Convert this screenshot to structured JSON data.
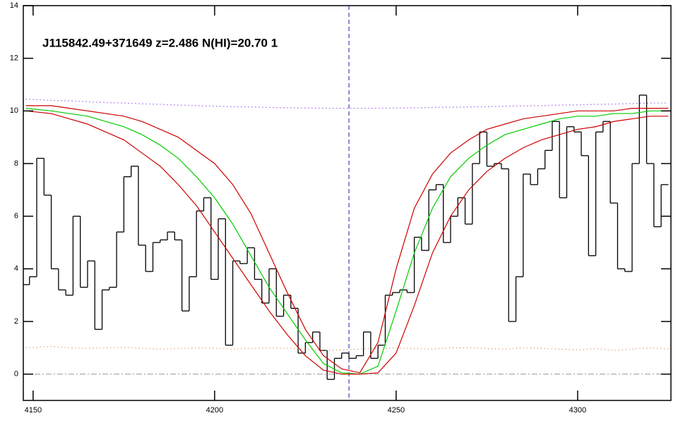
{
  "chart_data": {
    "type": "line",
    "title": "J115842.49+371649 z=2.486 N(HI)=20.70 1",
    "xlim": [
      4147.3,
      4325.7
    ],
    "ylim": [
      -1.0,
      14
    ],
    "xticks": [
      4150,
      4200,
      4250,
      4300
    ],
    "yticks": [
      0,
      2,
      4,
      6,
      8,
      10,
      12,
      14
    ],
    "hline": {
      "value": 0,
      "color": "#999999"
    },
    "vline": {
      "value": 4237,
      "color": "#1a1aaa"
    },
    "series": [
      {
        "color": "#000000",
        "style": "steps",
        "x": [
          4148,
          4150,
          4152,
          4154,
          4156,
          4158,
          4160,
          4162,
          4164,
          4166,
          4168,
          4170,
          4172,
          4174,
          4176,
          4178,
          4180,
          4182,
          4184,
          4186,
          4188,
          4190,
          4192,
          4194,
          4196,
          4198,
          4200,
          4202,
          4204,
          4206,
          4208,
          4210,
          4212,
          4214,
          4216,
          4218,
          4220,
          4222,
          4224,
          4226,
          4228,
          4230,
          4232,
          4234,
          4236,
          4238,
          4240,
          4242,
          4244,
          4246,
          4248,
          4250,
          4252,
          4254,
          4256,
          4258,
          4260,
          4262,
          4264,
          4266,
          4268,
          4270,
          4272,
          4274,
          4276,
          4278,
          4280,
          4282,
          4284,
          4286,
          4288,
          4290,
          4292,
          4294,
          4296,
          4298,
          4300,
          4302,
          4304,
          4306,
          4308,
          4310,
          4312,
          4314,
          4316,
          4318,
          4320,
          4322,
          4324
        ],
        "values": [
          3.4,
          3.7,
          8.2,
          6.8,
          4.0,
          3.2,
          3.0,
          6.0,
          3.3,
          4.3,
          1.7,
          3.2,
          3.3,
          5.4,
          7.5,
          7.9,
          4.9,
          3.9,
          5.0,
          5.1,
          5.4,
          5.1,
          2.4,
          3.7,
          6.2,
          6.7,
          3.6,
          5.9,
          1.1,
          4.3,
          4.2,
          4.8,
          3.6,
          2.7,
          4.0,
          2.2,
          3.0,
          2.5,
          0.8,
          1.2,
          1.6,
          0.9,
          -0.2,
          0.6,
          0.8,
          0.6,
          0.7,
          1.6,
          0.6,
          1.1,
          3.0,
          3.1,
          3.2,
          3.1,
          5.2,
          4.7,
          7.0,
          7.2,
          5.0,
          6.0,
          6.7,
          5.7,
          8.0,
          9.2,
          7.9,
          8.0,
          7.8,
          2.0,
          3.7,
          7.6,
          7.2,
          7.8,
          8.5,
          9.6,
          6.7,
          9.4,
          9.2,
          8.3,
          4.5,
          9.2,
          9.6,
          6.5,
          4.0,
          3.9,
          8.0,
          10.6,
          8.0,
          5.6,
          7.2
        ]
      },
      {
        "color": "#00cc00",
        "style": "solid",
        "x": [
          4148,
          4155,
          4160,
          4165,
          4170,
          4175,
          4180,
          4185,
          4190,
          4195,
          4200,
          4205,
          4210,
          4215,
          4220,
          4225,
          4230,
          4235,
          4240,
          4245,
          4250,
          4255,
          4260,
          4265,
          4270,
          4275,
          4280,
          4285,
          4290,
          4295,
          4300,
          4305,
          4310,
          4315,
          4320,
          4325
        ],
        "values": [
          10.1,
          10.0,
          9.9,
          9.8,
          9.6,
          9.4,
          9.1,
          8.7,
          8.2,
          7.5,
          6.7,
          5.7,
          4.5,
          3.3,
          2.3,
          1.3,
          0.4,
          0.05,
          0,
          0.3,
          2.4,
          4.6,
          6.3,
          7.5,
          8.2,
          8.7,
          9.1,
          9.3,
          9.5,
          9.7,
          9.8,
          9.8,
          9.9,
          9.9,
          10.0,
          10.0
        ]
      },
      {
        "color": "#cc0000",
        "style": "solid",
        "x": [
          4148,
          4155,
          4160,
          4165,
          4170,
          4175,
          4180,
          4185,
          4190,
          4195,
          4200,
          4205,
          4210,
          4215,
          4220,
          4225,
          4230,
          4235,
          4240,
          4245,
          4250,
          4255,
          4260,
          4265,
          4270,
          4275,
          4280,
          4285,
          4290,
          4295,
          4300,
          4305,
          4310,
          4315,
          4320,
          4325
        ],
        "values": [
          10.0,
          9.9,
          9.7,
          9.5,
          9.2,
          8.9,
          8.4,
          7.9,
          7.2,
          6.4,
          5.4,
          4.4,
          3.4,
          2.4,
          1.5,
          0.7,
          0.15,
          0,
          0,
          0.05,
          0.8,
          2.6,
          4.6,
          6.0,
          7.0,
          7.7,
          8.2,
          8.6,
          8.9,
          9.1,
          9.3,
          9.4,
          9.6,
          9.7,
          9.8,
          9.8
        ]
      },
      {
        "color": "#cc0000",
        "style": "solid",
        "x": [
          4148,
          4155,
          4160,
          4165,
          4170,
          4175,
          4180,
          4185,
          4190,
          4195,
          4200,
          4205,
          4210,
          4215,
          4220,
          4225,
          4230,
          4235,
          4240,
          4245,
          4250,
          4255,
          4260,
          4265,
          4270,
          4275,
          4280,
          4285,
          4290,
          4295,
          4300,
          4305,
          4310,
          4315,
          4320,
          4325
        ],
        "values": [
          10.2,
          10.2,
          10.1,
          10.0,
          9.9,
          9.8,
          9.6,
          9.3,
          9.0,
          8.5,
          8.0,
          7.2,
          6.1,
          4.6,
          3.1,
          1.7,
          0.7,
          0.2,
          0.05,
          1.2,
          4.0,
          6.3,
          7.6,
          8.4,
          8.9,
          9.3,
          9.5,
          9.7,
          9.8,
          9.9,
          10.0,
          10.0,
          10.0,
          10.1,
          10.1,
          10.1
        ]
      },
      {
        "color": "#7a22e0",
        "style": "dotted",
        "x": [
          4148,
          4155,
          4160,
          4165,
          4170,
          4175,
          4180,
          4185,
          4190,
          4195,
          4200,
          4205,
          4210,
          4215,
          4220,
          4225,
          4230,
          4235,
          4240,
          4245,
          4250,
          4255,
          4260,
          4265,
          4270,
          4275,
          4280,
          4285,
          4290,
          4295,
          4300,
          4305,
          4310,
          4315,
          4320,
          4325
        ],
        "values": [
          10.45,
          10.4,
          10.38,
          10.35,
          10.32,
          10.3,
          10.27,
          10.25,
          10.22,
          10.2,
          10.18,
          10.16,
          10.15,
          10.13,
          10.12,
          10.11,
          10.1,
          10.1,
          10.1,
          10.1,
          10.11,
          10.12,
          10.13,
          10.14,
          10.15,
          10.16,
          10.18,
          10.19,
          10.2,
          10.22,
          10.23,
          10.25,
          10.26,
          10.28,
          10.3,
          10.3
        ]
      },
      {
        "color": "#e08040",
        "style": "dotted",
        "x": [
          4148,
          4155,
          4160,
          4165,
          4170,
          4175,
          4180,
          4185,
          4190,
          4195,
          4200,
          4205,
          4210,
          4215,
          4220,
          4225,
          4230,
          4235,
          4240,
          4245,
          4250,
          4255,
          4260,
          4265,
          4270,
          4275,
          4280,
          4285,
          4290,
          4295,
          4300,
          4305,
          4310,
          4315,
          4320,
          4325
        ],
        "values": [
          1.0,
          1.05,
          1.0,
          0.98,
          1.0,
          1.02,
          0.98,
          0.95,
          0.97,
          1.0,
          0.98,
          0.95,
          0.97,
          1.0,
          0.98,
          0.95,
          0.9,
          0.92,
          0.95,
          0.98,
          1.0,
          0.97,
          0.95,
          1.0,
          1.0,
          0.97,
          0.95,
          1.0,
          0.98,
          0.95,
          0.92,
          0.97,
          0.9,
          0.95,
          1.0,
          0.95
        ]
      }
    ]
  }
}
